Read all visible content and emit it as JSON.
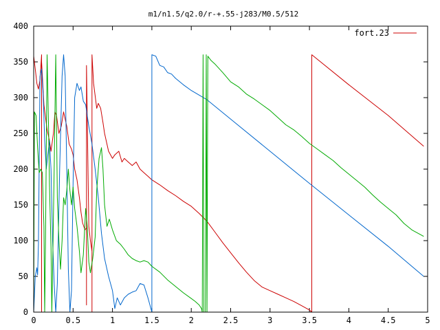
{
  "chart_data": {
    "type": "line",
    "title": "m1/n1.5/q2.0/r-+.55-j283/M0.5/512",
    "xlabel": "",
    "ylabel": "",
    "xlim": [
      0,
      5
    ],
    "ylim": [
      0,
      400
    ],
    "x_ticks": [
      "0",
      "0.5",
      "1",
      "1.5",
      "2",
      "2.5",
      "3",
      "3.5",
      "4",
      "4.5",
      "5"
    ],
    "x_tick_values": [
      0,
      0.5,
      1,
      1.5,
      2,
      2.5,
      3,
      3.5,
      4,
      4.5,
      5
    ],
    "y_ticks": [
      "0",
      "50",
      "100",
      "150",
      "200",
      "250",
      "300",
      "350",
      "400"
    ],
    "y_tick_values": [
      0,
      50,
      100,
      150,
      200,
      250,
      300,
      350,
      400
    ],
    "grid": false,
    "legend_position": "top-right",
    "legend": [
      {
        "label": "fort.23",
        "color": "#cc0000"
      }
    ],
    "series": [
      {
        "name": "fort.23",
        "color": "#cc0000",
        "points": [
          [
            0.0,
            358
          ],
          [
            0.02,
            340
          ],
          [
            0.04,
            320
          ],
          [
            0.06,
            312
          ],
          [
            0.08,
            325
          ],
          [
            0.1,
            360
          ],
          [
            0.1,
            0
          ],
          [
            0.1,
            350
          ],
          [
            0.13,
            290
          ],
          [
            0.17,
            255
          ],
          [
            0.2,
            240
          ],
          [
            0.22,
            225
          ],
          [
            0.25,
            250
          ],
          [
            0.27,
            280
          ],
          [
            0.29,
            275
          ],
          [
            0.32,
            250
          ],
          [
            0.35,
            260
          ],
          [
            0.38,
            280
          ],
          [
            0.42,
            260
          ],
          [
            0.45,
            235
          ],
          [
            0.48,
            228
          ],
          [
            0.5,
            220
          ],
          [
            0.52,
            200
          ],
          [
            0.55,
            185
          ],
          [
            0.58,
            160
          ],
          [
            0.6,
            140
          ],
          [
            0.62,
            125
          ],
          [
            0.65,
            115
          ],
          [
            0.67,
            118
          ],
          [
            0.67,
            10
          ],
          [
            0.67,
            345
          ],
          [
            0.7,
            120
          ],
          [
            0.72,
            100
          ],
          [
            0.74,
            85
          ],
          [
            0.74,
            0
          ],
          [
            0.74,
            360
          ],
          [
            0.76,
            320
          ],
          [
            0.8,
            285
          ],
          [
            0.82,
            292
          ],
          [
            0.85,
            285
          ],
          [
            0.88,
            265
          ],
          [
            0.9,
            250
          ],
          [
            0.95,
            225
          ],
          [
            1.0,
            215
          ],
          [
            1.03,
            220
          ],
          [
            1.08,
            225
          ],
          [
            1.12,
            210
          ],
          [
            1.15,
            215
          ],
          [
            1.2,
            210
          ],
          [
            1.25,
            205
          ],
          [
            1.3,
            210
          ],
          [
            1.35,
            200
          ],
          [
            1.4,
            195
          ],
          [
            1.45,
            190
          ],
          [
            1.5,
            185
          ],
          [
            1.6,
            178
          ],
          [
            1.7,
            170
          ],
          [
            1.8,
            163
          ],
          [
            1.9,
            155
          ],
          [
            2.0,
            148
          ],
          [
            2.1,
            138
          ],
          [
            2.2,
            127
          ],
          [
            2.3,
            112
          ],
          [
            2.4,
            97
          ],
          [
            2.5,
            83
          ],
          [
            2.6,
            69
          ],
          [
            2.7,
            56
          ],
          [
            2.8,
            44
          ],
          [
            2.9,
            35
          ],
          [
            3.0,
            30
          ],
          [
            3.1,
            25
          ],
          [
            3.2,
            20
          ],
          [
            3.3,
            15
          ],
          [
            3.4,
            9
          ],
          [
            3.5,
            3
          ],
          [
            3.53,
            0
          ],
          [
            3.53,
            360
          ],
          [
            4.0,
            318
          ],
          [
            4.5,
            275
          ],
          [
            4.95,
            232
          ]
        ]
      },
      {
        "name": "",
        "color": "#0066cc",
        "points": [
          [
            0.0,
            0
          ],
          [
            0.02,
            50
          ],
          [
            0.04,
            62
          ],
          [
            0.05,
            52
          ],
          [
            0.06,
            95
          ],
          [
            0.08,
            330
          ],
          [
            0.1,
            340
          ],
          [
            0.12,
            305
          ],
          [
            0.14,
            240
          ],
          [
            0.16,
            200
          ],
          [
            0.18,
            220
          ],
          [
            0.2,
            240
          ],
          [
            0.22,
            200
          ],
          [
            0.24,
            100
          ],
          [
            0.26,
            40
          ],
          [
            0.28,
            0
          ],
          [
            0.3,
            40
          ],
          [
            0.33,
            200
          ],
          [
            0.36,
            330
          ],
          [
            0.38,
            360
          ],
          [
            0.4,
            330
          ],
          [
            0.42,
            200
          ],
          [
            0.44,
            60
          ],
          [
            0.46,
            0
          ],
          [
            0.48,
            30
          ],
          [
            0.5,
            180
          ],
          [
            0.52,
            300
          ],
          [
            0.55,
            320
          ],
          [
            0.58,
            310
          ],
          [
            0.6,
            315
          ],
          [
            0.63,
            295
          ],
          [
            0.66,
            290
          ],
          [
            0.7,
            260
          ],
          [
            0.74,
            235
          ],
          [
            0.78,
            200
          ],
          [
            0.82,
            160
          ],
          [
            0.86,
            110
          ],
          [
            0.9,
            75
          ],
          [
            0.95,
            50
          ],
          [
            1.0,
            30
          ],
          [
            1.03,
            5
          ],
          [
            1.06,
            20
          ],
          [
            1.1,
            10
          ],
          [
            1.15,
            20
          ],
          [
            1.2,
            25
          ],
          [
            1.25,
            28
          ],
          [
            1.3,
            30
          ],
          [
            1.35,
            40
          ],
          [
            1.4,
            38
          ],
          [
            1.45,
            20
          ],
          [
            1.5,
            0
          ],
          [
            1.5,
            360
          ],
          [
            1.55,
            358
          ],
          [
            1.6,
            345
          ],
          [
            1.65,
            343
          ],
          [
            1.7,
            335
          ],
          [
            1.75,
            333
          ],
          [
            1.8,
            327
          ],
          [
            1.9,
            318
          ],
          [
            2.0,
            310
          ],
          [
            2.2,
            297
          ],
          [
            2.5,
            270
          ],
          [
            3.0,
            225
          ],
          [
            3.5,
            180
          ],
          [
            4.0,
            136
          ],
          [
            4.5,
            92
          ],
          [
            4.95,
            50
          ]
        ]
      },
      {
        "name": "",
        "color": "#00aa00",
        "points": [
          [
            0.0,
            0
          ],
          [
            0.01,
            280
          ],
          [
            0.03,
            275
          ],
          [
            0.05,
            230
          ],
          [
            0.07,
            195
          ],
          [
            0.09,
            200
          ],
          [
            0.11,
            195
          ],
          [
            0.13,
            120
          ],
          [
            0.14,
            0
          ],
          [
            0.15,
            100
          ],
          [
            0.17,
            360
          ],
          [
            0.19,
            250
          ],
          [
            0.2,
            180
          ],
          [
            0.22,
            90
          ],
          [
            0.23,
            0
          ],
          [
            0.24,
            60
          ],
          [
            0.26,
            200
          ],
          [
            0.28,
            360
          ],
          [
            0.3,
            160
          ],
          [
            0.32,
            100
          ],
          [
            0.34,
            60
          ],
          [
            0.36,
            100
          ],
          [
            0.38,
            160
          ],
          [
            0.4,
            150
          ],
          [
            0.42,
            170
          ],
          [
            0.44,
            200
          ],
          [
            0.46,
            170
          ],
          [
            0.48,
            150
          ],
          [
            0.5,
            175
          ],
          [
            0.52,
            145
          ],
          [
            0.55,
            120
          ],
          [
            0.58,
            85
          ],
          [
            0.6,
            55
          ],
          [
            0.63,
            80
          ],
          [
            0.66,
            145
          ],
          [
            0.68,
            120
          ],
          [
            0.7,
            70
          ],
          [
            0.72,
            55
          ],
          [
            0.75,
            75
          ],
          [
            0.78,
            105
          ],
          [
            0.8,
            170
          ],
          [
            0.83,
            215
          ],
          [
            0.86,
            230
          ],
          [
            0.88,
            200
          ],
          [
            0.9,
            150
          ],
          [
            0.93,
            120
          ],
          [
            0.96,
            130
          ],
          [
            1.0,
            115
          ],
          [
            1.05,
            100
          ],
          [
            1.1,
            95
          ],
          [
            1.15,
            88
          ],
          [
            1.2,
            80
          ],
          [
            1.25,
            75
          ],
          [
            1.3,
            72
          ],
          [
            1.35,
            70
          ],
          [
            1.4,
            72
          ],
          [
            1.45,
            70
          ],
          [
            1.5,
            64
          ],
          [
            1.6,
            56
          ],
          [
            1.7,
            45
          ],
          [
            1.8,
            36
          ],
          [
            1.9,
            27
          ],
          [
            2.0,
            19
          ],
          [
            2.05,
            15
          ],
          [
            2.1,
            10
          ],
          [
            2.13,
            5
          ],
          [
            2.14,
            0
          ],
          [
            2.15,
            360
          ],
          [
            2.16,
            0
          ],
          [
            2.18,
            0
          ],
          [
            2.19,
            360
          ],
          [
            2.2,
            0
          ],
          [
            2.21,
            358
          ],
          [
            2.25,
            352
          ],
          [
            2.3,
            347
          ],
          [
            2.4,
            335
          ],
          [
            2.5,
            322
          ],
          [
            2.6,
            315
          ],
          [
            2.7,
            305
          ],
          [
            2.8,
            298
          ],
          [
            2.9,
            290
          ],
          [
            3.0,
            282
          ],
          [
            3.1,
            272
          ],
          [
            3.2,
            262
          ],
          [
            3.3,
            255
          ],
          [
            3.4,
            246
          ],
          [
            3.5,
            236
          ],
          [
            3.6,
            228
          ],
          [
            3.7,
            220
          ],
          [
            3.8,
            212
          ],
          [
            3.9,
            202
          ],
          [
            4.0,
            193
          ],
          [
            4.1,
            184
          ],
          [
            4.2,
            175
          ],
          [
            4.3,
            164
          ],
          [
            4.4,
            154
          ],
          [
            4.5,
            145
          ],
          [
            4.6,
            136
          ],
          [
            4.7,
            124
          ],
          [
            4.8,
            115
          ],
          [
            4.95,
            106
          ]
        ]
      }
    ]
  }
}
